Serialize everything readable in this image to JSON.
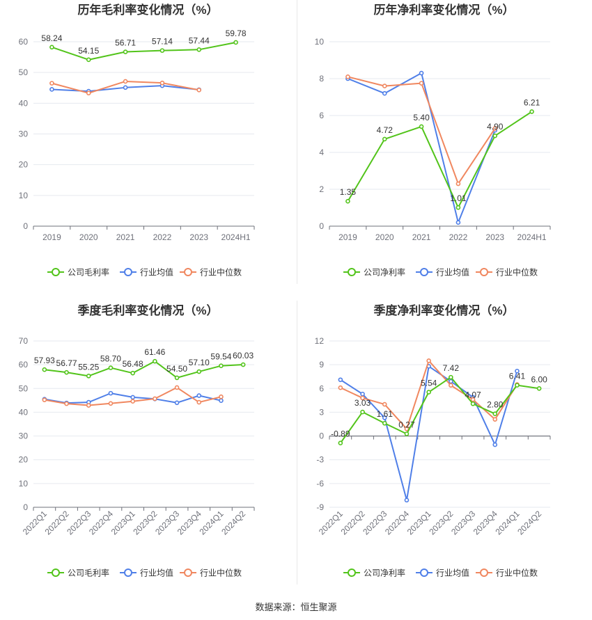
{
  "source": "数据来源：恒生聚源",
  "colors": {
    "company": "#52c41a",
    "avg": "#4f7fe8",
    "median": "#f0875f"
  },
  "chart_data": [
    {
      "type": "line",
      "title": "历年毛利率变化情况（%）",
      "categories": [
        "2019",
        "2020",
        "2021",
        "2022",
        "2023",
        "2024H1"
      ],
      "ylim": [
        0,
        60
      ],
      "yticks": [
        0,
        10,
        20,
        30,
        40,
        50,
        60
      ],
      "rotate_labels": false,
      "grid": true,
      "legend_position": "bottom",
      "series": [
        {
          "name": "公司毛利率",
          "key": "company",
          "values": [
            58.24,
            54.15,
            56.71,
            57.14,
            57.44,
            59.78
          ],
          "labels": [
            "58.24",
            "54.15",
            "56.71",
            "57.14",
            "57.44",
            "59.78"
          ]
        },
        {
          "name": "行业均值",
          "key": "avg",
          "values": [
            44.5,
            43.9,
            45.1,
            45.7,
            44.4,
            null
          ]
        },
        {
          "name": "行业中位数",
          "key": "median",
          "values": [
            46.5,
            43.3,
            47.1,
            46.6,
            44.3,
            null
          ]
        }
      ]
    },
    {
      "type": "line",
      "title": "历年净利率变化情况（%）",
      "categories": [
        "2019",
        "2020",
        "2021",
        "2022",
        "2023",
        "2024H1"
      ],
      "ylim": [
        0,
        10
      ],
      "yticks": [
        0,
        2,
        4,
        6,
        8,
        10
      ],
      "rotate_labels": false,
      "grid": true,
      "legend_position": "bottom",
      "series": [
        {
          "name": "公司净利率",
          "key": "company",
          "values": [
            1.35,
            4.72,
            5.4,
            1.01,
            4.9,
            6.21
          ],
          "labels": [
            "1.35",
            "4.72",
            "5.40",
            "1.01",
            "4.90",
            "6.21"
          ]
        },
        {
          "name": "行业均值",
          "key": "avg",
          "values": [
            8.0,
            7.2,
            8.3,
            0.2,
            5.2,
            null
          ]
        },
        {
          "name": "行业中位数",
          "key": "median",
          "values": [
            8.1,
            7.6,
            7.75,
            2.3,
            5.3,
            null
          ]
        }
      ]
    },
    {
      "type": "line",
      "title": "季度毛利率变化情况（%）",
      "categories": [
        "2022Q1",
        "2022Q2",
        "2022Q3",
        "2022Q4",
        "2023Q1",
        "2023Q2",
        "2023Q3",
        "2023Q4",
        "2024Q1",
        "2024Q2"
      ],
      "ylim": [
        0,
        70
      ],
      "yticks": [
        0,
        10,
        20,
        30,
        40,
        50,
        60,
        70
      ],
      "rotate_labels": true,
      "grid": true,
      "legend_position": "bottom",
      "series": [
        {
          "name": "公司毛利率",
          "key": "company",
          "values": [
            57.93,
            56.77,
            55.25,
            58.7,
            56.48,
            61.46,
            54.5,
            57.1,
            59.54,
            60.03
          ],
          "labels": [
            "57.93",
            "56.77",
            "55.25",
            "58.70",
            "56.48",
            "61.46",
            "54.50",
            "57.10",
            "59.54",
            "60.03"
          ]
        },
        {
          "name": "行业均值",
          "key": "avg",
          "values": [
            45.5,
            43.9,
            44.2,
            48.0,
            46.3,
            45.6,
            44.0,
            47.0,
            44.9,
            null
          ]
        },
        {
          "name": "行业中位数",
          "key": "median",
          "values": [
            45.2,
            43.6,
            42.9,
            43.7,
            44.6,
            45.7,
            50.4,
            44.2,
            46.5,
            null
          ]
        }
      ]
    },
    {
      "type": "line",
      "title": "季度净利率变化情况（%）",
      "categories": [
        "2022Q1",
        "2022Q2",
        "2022Q3",
        "2022Q4",
        "2023Q1",
        "2023Q2",
        "2023Q3",
        "2023Q4",
        "2024Q1",
        "2024Q2"
      ],
      "ylim": [
        -9,
        12
      ],
      "yticks": [
        -9,
        -6,
        -3,
        0,
        3,
        6,
        9,
        12
      ],
      "rotate_labels": true,
      "grid": true,
      "legend_position": "bottom",
      "series": [
        {
          "name": "公司净利率",
          "key": "company",
          "values": [
            -0.89,
            3.03,
            1.61,
            0.27,
            5.54,
            7.42,
            4.07,
            2.8,
            6.41,
            6.0
          ],
          "labels": [
            "-0.89",
            "3.03",
            "1.61",
            "0.27",
            "5.54",
            "7.42",
            "4.07",
            "2.80",
            "6.41",
            "6.00"
          ]
        },
        {
          "name": "行业均值",
          "key": "avg",
          "values": [
            7.1,
            5.3,
            2.3,
            -8.1,
            8.8,
            6.9,
            4.9,
            -1.1,
            8.2,
            null
          ]
        },
        {
          "name": "行业中位数",
          "key": "median",
          "values": [
            6.1,
            4.8,
            4.0,
            0.9,
            9.5,
            6.4,
            4.6,
            2.1,
            6.5,
            null
          ]
        }
      ]
    }
  ]
}
